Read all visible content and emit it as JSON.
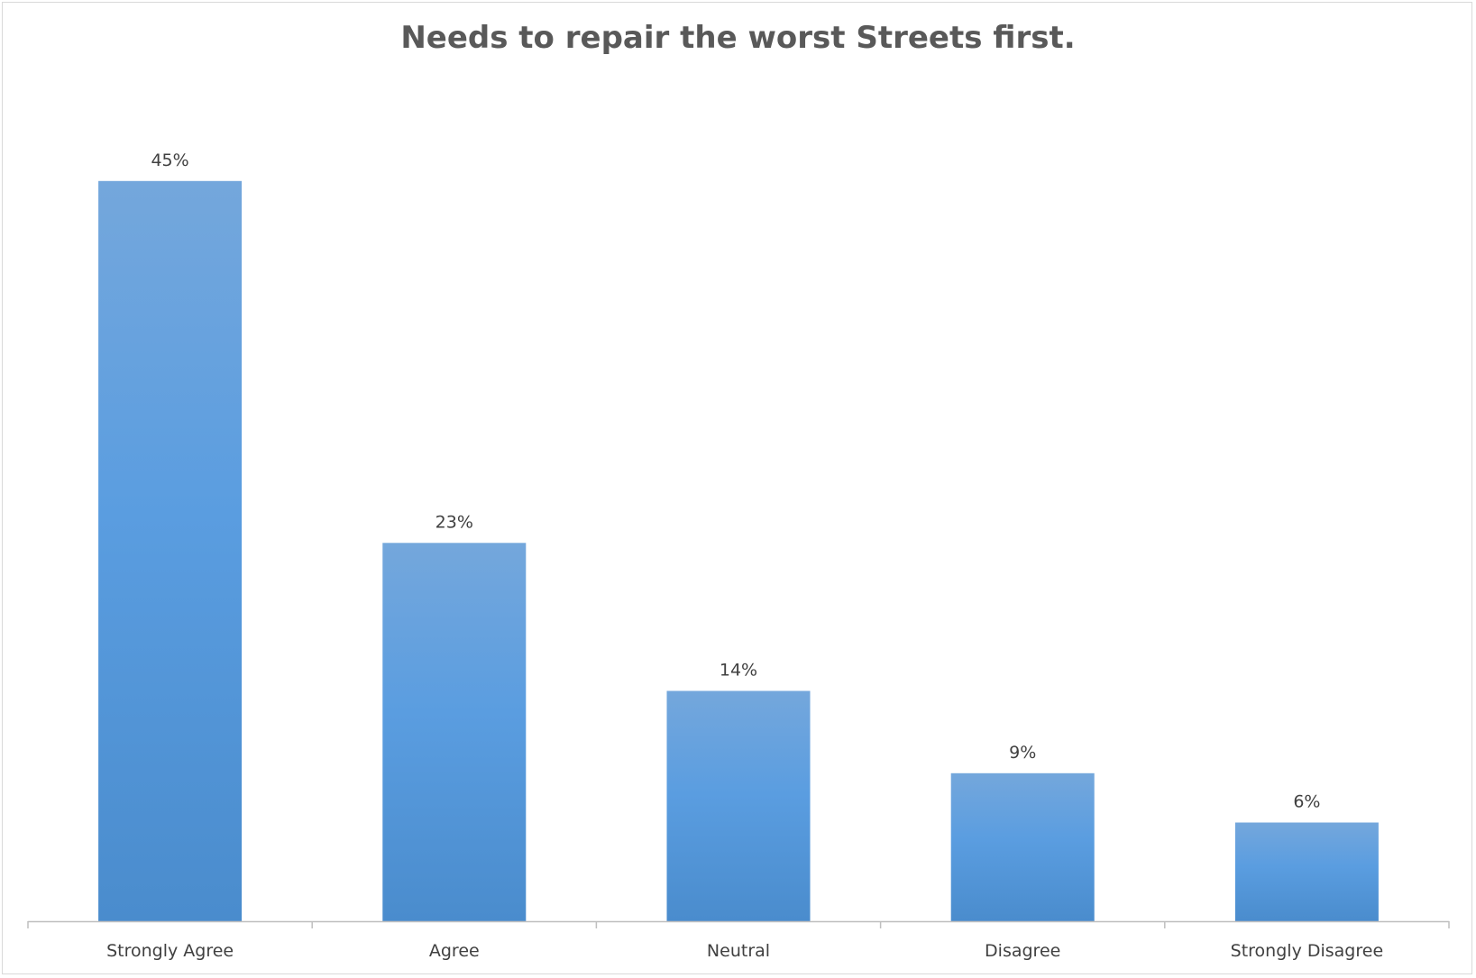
{
  "chart_data": {
    "type": "bar",
    "title": "Needs to repair the worst Streets first.",
    "xlabel": "",
    "ylabel": "",
    "categories": [
      "Strongly Agree",
      "Agree",
      "Neutral",
      "Disagree",
      "Strongly Disagree"
    ],
    "values": [
      45,
      23,
      14,
      9,
      6
    ],
    "data_labels": [
      "45%",
      "23%",
      "14%",
      "9%",
      "6%"
    ],
    "ylim": [
      0,
      50
    ],
    "grid": false,
    "legend": "none",
    "colors": {
      "bar_top": "#74a7dc",
      "bar_mid": "#5a9de0",
      "bar_bottom": "#4a8ccd",
      "axis": "#bfbfbf",
      "title": "#595959",
      "text": "#404040"
    }
  }
}
